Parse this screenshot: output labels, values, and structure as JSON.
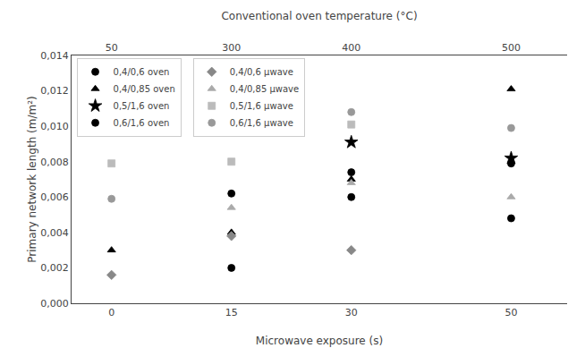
{
  "chart_data": {
    "type": "scatter",
    "xlabel": "Microwave exposure (s)",
    "ylabel": "Primary network length (m/m²)",
    "x2label": "Conventional oven temperature (°C)",
    "xlim": [
      -5,
      57
    ],
    "xticks": [
      0,
      15,
      30,
      50
    ],
    "x2lim": [
      -5,
      57
    ],
    "x2ticks": [
      {
        "value": 0,
        "label": "50"
      },
      {
        "value": 15,
        "label": "300"
      },
      {
        "value": 30,
        "label": "400"
      },
      {
        "value": 50,
        "label": "500"
      }
    ],
    "ylim": [
      0,
      0.014
    ],
    "yticks": [
      {
        "value": 0.0,
        "label": "0,000"
      },
      {
        "value": 0.002,
        "label": "0,002"
      },
      {
        "value": 0.004,
        "label": "0,004"
      },
      {
        "value": 0.006,
        "label": "0,006"
      },
      {
        "value": 0.008,
        "label": "0,008"
      },
      {
        "value": 0.01,
        "label": "0,010"
      },
      {
        "value": 0.012,
        "label": "0,012"
      },
      {
        "value": 0.014,
        "label": "0,014"
      }
    ],
    "grid": false,
    "legend": "upper left",
    "series": [
      {
        "name": "0,4/0,6 oven",
        "marker": "circle",
        "color": "#000000",
        "x": [
          15,
          30,
          50
        ],
        "values": [
          0.002,
          0.006,
          0.0048
        ]
      },
      {
        "name": "0,4/0,85 oven",
        "marker": "triangle-up",
        "color": "#000000",
        "x": [
          0,
          15,
          30,
          50
        ],
        "values": [
          0.003,
          0.004,
          0.007,
          0.0121
        ]
      },
      {
        "name": "0,5/1,6 oven",
        "marker": "star",
        "color": "#000000",
        "x": [
          30,
          50
        ],
        "values": [
          0.0091,
          0.0082
        ]
      },
      {
        "name": "0,6/1,6 oven",
        "marker": "circle",
        "color": "#000000",
        "x": [
          15,
          30,
          50
        ],
        "values": [
          0.0062,
          0.0074,
          0.0079
        ]
      },
      {
        "name": "0,4/0,6 μwave",
        "marker": "diamond",
        "color": "#888888",
        "x": [
          0,
          15,
          30
        ],
        "values": [
          0.0016,
          0.0038,
          0.003
        ]
      },
      {
        "name": "0,4/0,85 μwave",
        "marker": "triangle-up",
        "color": "#aaaaaa",
        "x": [
          15,
          30,
          50
        ],
        "values": [
          0.0054,
          0.0068,
          0.006
        ]
      },
      {
        "name": "0,5/1,6 μwave",
        "marker": "square",
        "color": "#bbbbbb",
        "x": [
          0,
          15,
          30
        ],
        "values": [
          0.0079,
          0.008,
          0.0101
        ]
      },
      {
        "name": "0,6/1,6 μwave",
        "marker": "circle",
        "color": "#999999",
        "x": [
          0,
          30,
          50
        ],
        "values": [
          0.0059,
          0.0108,
          0.0099
        ]
      }
    ]
  }
}
